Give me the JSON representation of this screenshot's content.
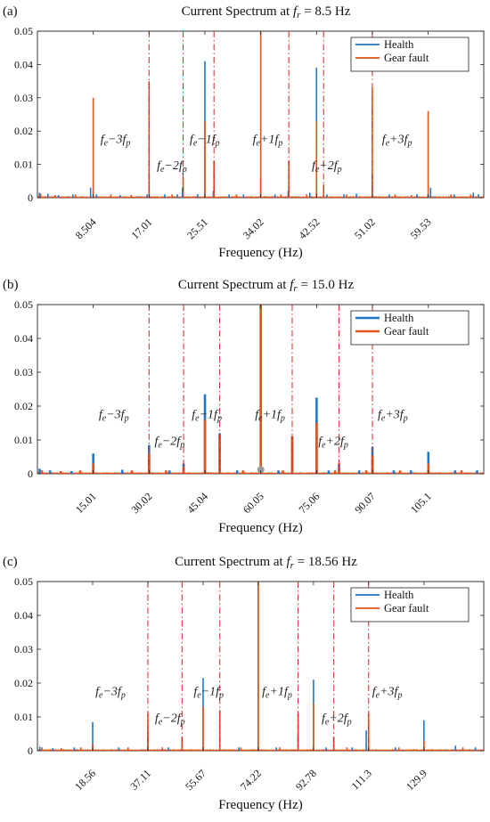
{
  "colors": {
    "health": "#1f77c9",
    "gear_fault": "#e3531a",
    "guide": "#d62728",
    "marker": "#9a9a9a"
  },
  "chart_data": [
    {
      "type": "line",
      "panel_label": "(a)",
      "title": "Current Spectrum at ",
      "title_var": "f",
      "title_sub": "r",
      "title_value": " = 8.5 Hz",
      "xlabel": "Frequency (Hz)",
      "ylabel": "",
      "xlim": [
        0,
        68
      ],
      "ylim": [
        0,
        0.05
      ],
      "yticks": [
        0,
        0.01,
        0.02,
        0.03,
        0.04,
        0.05
      ],
      "ytick_labels": [
        "0",
        "0.01",
        "0.02",
        "0.03",
        "0.04",
        "0.05"
      ],
      "xticks": [
        8.504,
        17.01,
        25.51,
        34.02,
        42.52,
        51.02,
        59.53
      ],
      "xtick_labels": [
        "8.504",
        "17.01",
        "25.51",
        "34.02",
        "42.52",
        "51.02",
        "59.53"
      ],
      "guides_x": [
        17.01,
        22.2,
        26.9,
        38.3,
        43.6,
        51.02
      ],
      "annotations": [
        {
          "text": "fe−3fp",
          "x": 9.6,
          "y": 0.0165
        },
        {
          "text": "fe−2fp",
          "x": 18.2,
          "y": 0.0085
        },
        {
          "text": "fe−1fp",
          "x": 23.2,
          "y": 0.0165
        },
        {
          "text": "fe+1fp",
          "x": 32.8,
          "y": 0.0165
        },
        {
          "text": "fe+2fp",
          "x": 41.8,
          "y": 0.0085
        },
        {
          "text": "fe+3fp",
          "x": 52.5,
          "y": 0.0165
        }
      ],
      "series": [
        {
          "name": "Health",
          "x": [
            0.3,
            1.6,
            3.2,
            5.4,
            8.1,
            8.504,
            9.0,
            12.6,
            16.7,
            17.01,
            19.4,
            21.3,
            22.1,
            24.4,
            25.51,
            26.8,
            29.2,
            31.4,
            34.02,
            36.2,
            38.2,
            41.5,
            42.52,
            44.1,
            46.7,
            48.6,
            51.02,
            53.6,
            57.8,
            59.53,
            59.9,
            63.5,
            66.4,
            67.2
          ],
          "values": [
            0.0015,
            0.0012,
            0.0008,
            0.001,
            0.003,
            0.002,
            0.001,
            0.0008,
            0.001,
            0.007,
            0.001,
            0.001,
            0.003,
            0.001,
            0.041,
            0.002,
            0.001,
            0.001,
            0.006,
            0.001,
            0.002,
            0.0015,
            0.039,
            0.001,
            0.001,
            0.0012,
            0.007,
            0.001,
            0.001,
            0.001,
            0.003,
            0.001,
            0.0015,
            0.001
          ]
        },
        {
          "name": "Gear fault",
          "x": [
            0.5,
            2.7,
            5.8,
            8.504,
            11.2,
            14.3,
            17.01,
            20.5,
            22.2,
            25.51,
            26.9,
            30.3,
            34.02,
            37.1,
            38.3,
            41.0,
            42.52,
            43.6,
            47.1,
            51.02,
            54.5,
            57.0,
            59.53,
            63.0,
            66.0
          ],
          "values": [
            0.0012,
            0.0008,
            0.001,
            0.03,
            0.001,
            0.0008,
            0.035,
            0.001,
            0.006,
            0.023,
            0.011,
            0.001,
            0.05,
            0.001,
            0.011,
            0.001,
            0.023,
            0.004,
            0.001,
            0.033,
            0.001,
            0.0008,
            0.026,
            0.001,
            0.001
          ]
        }
      ],
      "legend": {
        "position": "top-right",
        "entries": [
          "Health",
          "Gear fault"
        ]
      },
      "markers": []
    },
    {
      "type": "line",
      "panel_label": "(b)",
      "title": "Current Spectrum at ",
      "title_var": "f",
      "title_sub": "r",
      "title_value": " = 15.0 Hz",
      "xlabel": "Frequency (Hz)",
      "ylabel": "",
      "xlim": [
        0,
        120
      ],
      "ylim": [
        0,
        0.05
      ],
      "yticks": [
        0,
        0.01,
        0.02,
        0.03,
        0.04,
        0.05
      ],
      "ytick_labels": [
        "0",
        "0.01",
        "0.02",
        "0.03",
        "0.04",
        "0.05"
      ],
      "xticks": [
        15.01,
        30.02,
        45.04,
        60.05,
        75.06,
        90.07,
        105.1
      ],
      "xtick_labels": [
        "15.01",
        "30.02",
        "45.04",
        "60.05",
        "75.06",
        "90.07",
        "105.1"
      ],
      "guides_x": [
        30.02,
        39.3,
        49.0,
        68.5,
        81.1,
        90.07
      ],
      "annotations": [
        {
          "text": "fe−3fp",
          "x": 16.5,
          "y": 0.0165
        },
        {
          "text": "fe−2fp",
          "x": 31.5,
          "y": 0.0085
        },
        {
          "text": "fe−1fp",
          "x": 41.5,
          "y": 0.0165
        },
        {
          "text": "fe+1fp",
          "x": 58.5,
          "y": 0.0165
        },
        {
          "text": "fe+2fp",
          "x": 75.5,
          "y": 0.0085
        },
        {
          "text": "fe+3fp",
          "x": 91.5,
          "y": 0.0165
        }
      ],
      "series": [
        {
          "name": "Health",
          "x": [
            0.6,
            3.4,
            9.2,
            15.01,
            22.8,
            30.02,
            35.5,
            39.3,
            45.04,
            49.0,
            53.7,
            60.05,
            64.8,
            68.5,
            75.06,
            78.3,
            81.1,
            86.5,
            90.07,
            95.8,
            100.4,
            105.1,
            112.3,
            118.2
          ],
          "values": [
            0.0015,
            0.001,
            0.0008,
            0.006,
            0.0012,
            0.0085,
            0.001,
            0.003,
            0.0235,
            0.012,
            0.001,
            0.05,
            0.001,
            0.011,
            0.0225,
            0.001,
            0.003,
            0.001,
            0.008,
            0.001,
            0.001,
            0.0065,
            0.001,
            0.001
          ]
        },
        {
          "name": "Gear fault",
          "x": [
            1.2,
            6.3,
            11.5,
            15.01,
            25.4,
            30.02,
            34.6,
            39.3,
            45.04,
            49.0,
            55.3,
            60.05,
            66.0,
            68.5,
            75.06,
            80.0,
            81.1,
            88.4,
            90.07,
            97.5,
            105.1,
            114.0
          ],
          "values": [
            0.001,
            0.0008,
            0.001,
            0.003,
            0.001,
            0.006,
            0.001,
            0.002,
            0.016,
            0.0115,
            0.001,
            0.05,
            0.001,
            0.011,
            0.015,
            0.001,
            0.002,
            0.001,
            0.0055,
            0.001,
            0.003,
            0.001
          ]
        }
      ],
      "legend": {
        "position": "top-right",
        "entries": [
          "Health",
          "Gear fault"
        ]
      },
      "markers": [
        {
          "x": 60.05,
          "y": 0.0012
        }
      ]
    },
    {
      "type": "line",
      "panel_label": "(c)",
      "title": "Current Spectrum at ",
      "title_var": "f",
      "title_sub": "r",
      "title_value": " = 18.56 Hz",
      "xlabel": "Frequency (Hz)",
      "ylabel": "",
      "xlim": [
        0,
        150
      ],
      "ylim": [
        0,
        0.05
      ],
      "yticks": [
        0,
        0.01,
        0.02,
        0.03,
        0.04,
        0.05
      ],
      "ytick_labels": [
        "0",
        "0.01",
        "0.02",
        "0.03",
        "0.04",
        "0.05"
      ],
      "xticks": [
        18.56,
        37.11,
        55.67,
        74.22,
        92.78,
        111.3,
        129.9
      ],
      "xtick_labels": [
        "18.56",
        "37.11",
        "55.67",
        "74.22",
        "92.78",
        "111.3",
        "129.9"
      ],
      "guides_x": [
        37.11,
        48.6,
        61.3,
        87.6,
        99.6,
        111.3
      ],
      "annotations": [
        {
          "text": "fe−3fp",
          "x": 19.5,
          "y": 0.0165
        },
        {
          "text": "fe−2fp",
          "x": 39.5,
          "y": 0.0085
        },
        {
          "text": "fe−1fp",
          "x": 52.5,
          "y": 0.0165
        },
        {
          "text": "fe+1fp",
          "x": 75.5,
          "y": 0.0165
        },
        {
          "text": "fe+2fp",
          "x": 95.5,
          "y": 0.0085
        },
        {
          "text": "fe+3fp",
          "x": 112.5,
          "y": 0.0165
        }
      ],
      "series": [
        {
          "name": "Health",
          "x": [
            0.8,
            5.2,
            12.4,
            18.56,
            27.3,
            37.11,
            44.0,
            48.6,
            55.67,
            61.3,
            67.7,
            74.22,
            80.3,
            87.6,
            92.78,
            97.0,
            99.6,
            105.8,
            110.5,
            111.3,
            120.3,
            129.9,
            140.5,
            147.2
          ],
          "values": [
            0.0012,
            0.0008,
            0.001,
            0.0085,
            0.001,
            0.006,
            0.001,
            0.003,
            0.0215,
            0.01,
            0.001,
            0.05,
            0.001,
            0.005,
            0.021,
            0.001,
            0.004,
            0.001,
            0.006,
            0.007,
            0.001,
            0.009,
            0.0015,
            0.001
          ]
        },
        {
          "name": "Gear fault",
          "x": [
            1.5,
            8.0,
            14.6,
            18.56,
            30.5,
            37.11,
            42.0,
            48.6,
            55.67,
            61.3,
            68.4,
            74.22,
            81.5,
            87.6,
            92.78,
            99.6,
            104.0,
            111.3,
            121.5,
            129.9,
            143.0
          ],
          "values": [
            0.001,
            0.0008,
            0.001,
            0.002,
            0.001,
            0.011,
            0.001,
            0.004,
            0.013,
            0.012,
            0.001,
            0.05,
            0.001,
            0.011,
            0.014,
            0.004,
            0.001,
            0.011,
            0.001,
            0.003,
            0.001
          ]
        }
      ],
      "legend": {
        "position": "top-right",
        "entries": [
          "Health",
          "Gear fault"
        ]
      },
      "markers": []
    }
  ]
}
